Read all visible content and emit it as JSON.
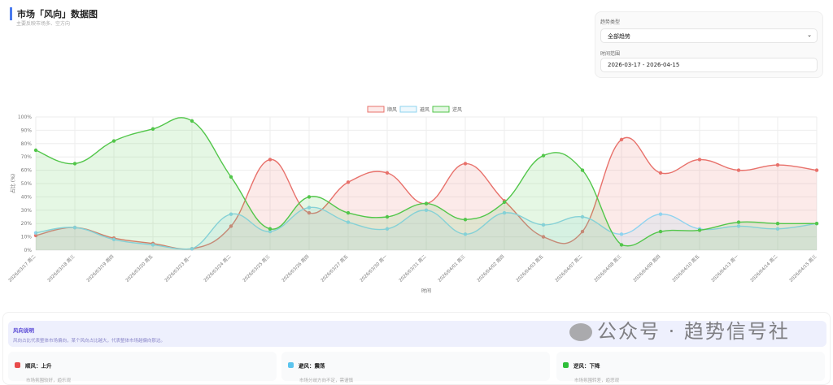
{
  "header": {
    "title": "市场「风向」数据图",
    "subtitle": "主要反映市场多、空方向"
  },
  "controls": {
    "trend_label": "趋势类型",
    "trend_value": "全部趋势",
    "range_label": "时间范围",
    "range_value": "2026-03-17 - 2026-04-15"
  },
  "chart_data": {
    "type": "line",
    "xlabel": "时间",
    "ylabel": "占比 (%)",
    "ylim": [
      0,
      100
    ],
    "yticks": [
      "0%",
      "10%",
      "20%",
      "30%",
      "40%",
      "50%",
      "60%",
      "70%",
      "80%",
      "90%",
      "100%"
    ],
    "grid": true,
    "legend": "top-center",
    "fill": true,
    "x": [
      "2026/03/17 周二",
      "2026/03/18 周三",
      "2026/03/19 周四",
      "2026/03/20 周五",
      "2026/03/23 周一",
      "2026/03/24 周二",
      "2026/03/25 周三",
      "2026/03/26 周四",
      "2026/03/27 周五",
      "2026/03/30 周一",
      "2026/03/31 周二",
      "2026/04/01 周三",
      "2026/04/02 周四",
      "2026/04/03 周五",
      "2026/04/07 周二",
      "2026/04/08 周三",
      "2026/04/09 周四",
      "2026/04/10 周五",
      "2026/04/13 周一",
      "2026/04/14 周二",
      "2026/04/15 周三"
    ],
    "series": [
      {
        "name": "顺风",
        "color": "#e8716b",
        "values": [
          11,
          17,
          9,
          5,
          1,
          18,
          68,
          28,
          51,
          58,
          35,
          65,
          37,
          10,
          14,
          83,
          58,
          68,
          60,
          64,
          60
        ]
      },
      {
        "name": "避风",
        "color": "#8fd3ef",
        "values": [
          13,
          17,
          8,
          4,
          1,
          27,
          14,
          32,
          21,
          16,
          30,
          12,
          28,
          19,
          25,
          12,
          27,
          16,
          18,
          16,
          20
        ]
      },
      {
        "name": "逆风",
        "color": "#52c64a",
        "values": [
          75,
          65,
          82,
          91,
          97,
          55,
          16,
          40,
          28,
          25,
          35,
          23,
          36,
          71,
          60,
          4,
          14,
          15,
          21,
          20,
          20
        ]
      }
    ]
  },
  "legend_note": {
    "title": "风向说明",
    "desc": "风向占比代表整体市场偏向，某个风向占比越大，代表整体市场越偏向那边。"
  },
  "cards": [
    {
      "title": "顺风：上升",
      "desc": "市场氛围较好，趋乐观",
      "color": "#e84b4b"
    },
    {
      "title": "避风：震荡",
      "desc": "市场分歧方向不定，需谨慎",
      "color": "#5bc4ee"
    },
    {
      "title": "逆风：下降",
      "desc": "市场氛围转差，趋悲观",
      "color": "#2fbf3a"
    }
  ],
  "watermark": "公众号 · 趋势信号社"
}
